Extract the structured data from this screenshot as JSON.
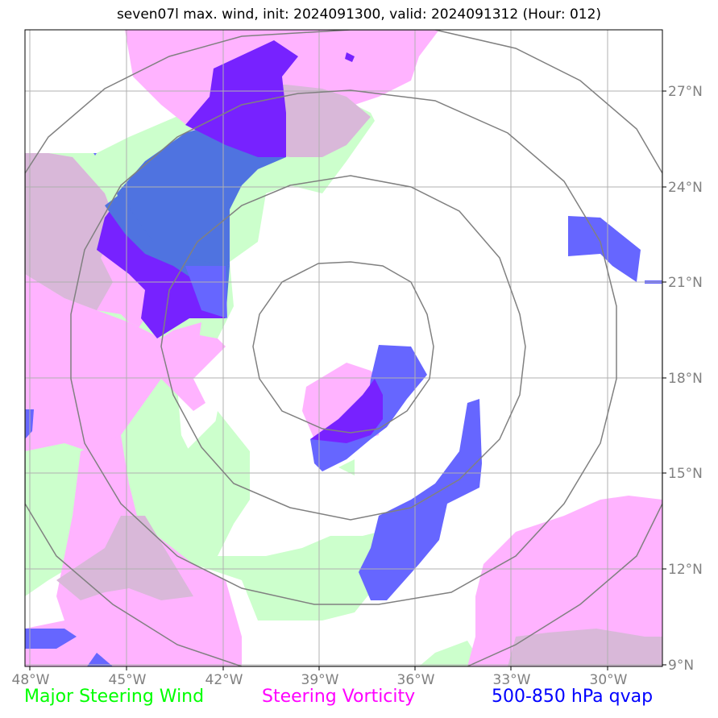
{
  "title": "seven07l max. wind, init: 2024091300, valid: 2024091312 (Hour: 012)",
  "lon_labels": [
    "48°W",
    "45°W",
    "42°W",
    "39°W",
    "36°W",
    "33°W",
    "30°W"
  ],
  "lat_labels": [
    "27°N",
    "24°N",
    "21°N",
    "18°N",
    "15°N",
    "12°N",
    "9°N"
  ],
  "legend": [
    {
      "label": "Major Steering Wind",
      "color": "#00ff00"
    },
    {
      "label": "Steering Vorticity",
      "color": "#ff00ff"
    },
    {
      "label": "500-850 hPa qvap",
      "color": "#0000ff"
    }
  ],
  "colors": {
    "wind": "#ccffcc",
    "vorticity": "#ffb3ff",
    "overlap": "#d9b8d9",
    "qvap": "#6666ff",
    "qvap_dark": "#7722ff",
    "qvap_mix": "#4f73e0",
    "grid": "#b0b0b0",
    "rings": "#808080"
  }
}
